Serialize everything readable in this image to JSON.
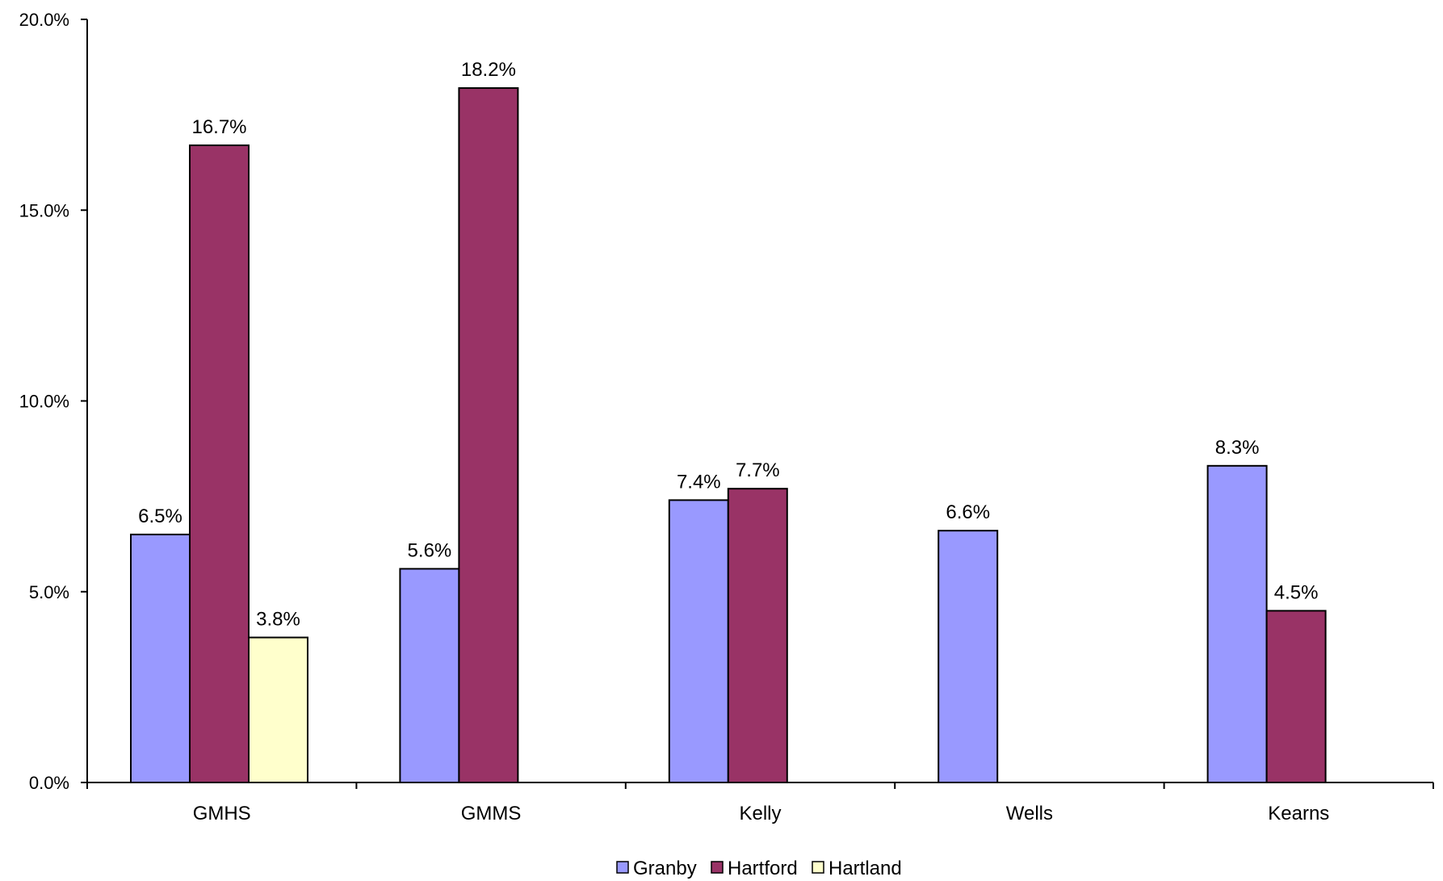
{
  "chart_data": {
    "type": "bar",
    "categories": [
      "GMHS",
      "GMMS",
      "Kelly",
      "Wells",
      "Kearns"
    ],
    "series": [
      {
        "name": "Granby",
        "color": "#9999ff",
        "values": [
          6.5,
          5.6,
          7.4,
          6.6,
          8.3
        ],
        "labels": [
          "6.5%",
          "5.6%",
          "7.4%",
          "6.6%",
          "8.3%"
        ]
      },
      {
        "name": "Hartford",
        "color": "#993366",
        "values": [
          16.7,
          18.2,
          7.7,
          null,
          4.5
        ],
        "labels": [
          "16.7%",
          "18.2%",
          "7.7%",
          "",
          "4.5%"
        ]
      },
      {
        "name": "Hartland",
        "color": "#ffffcc",
        "values": [
          3.8,
          null,
          null,
          null,
          null
        ],
        "labels": [
          "3.8%",
          "",
          "",
          "",
          ""
        ]
      }
    ],
    "ylim": [
      0,
      20
    ],
    "yticks": [
      0,
      5,
      10,
      15,
      20
    ],
    "ytick_labels": [
      "0.0%",
      "5.0%",
      "10.0%",
      "15.0%",
      "20.0%"
    ],
    "grid": false,
    "legend_position": "bottom",
    "title": "",
    "xlabel": "",
    "ylabel": ""
  }
}
